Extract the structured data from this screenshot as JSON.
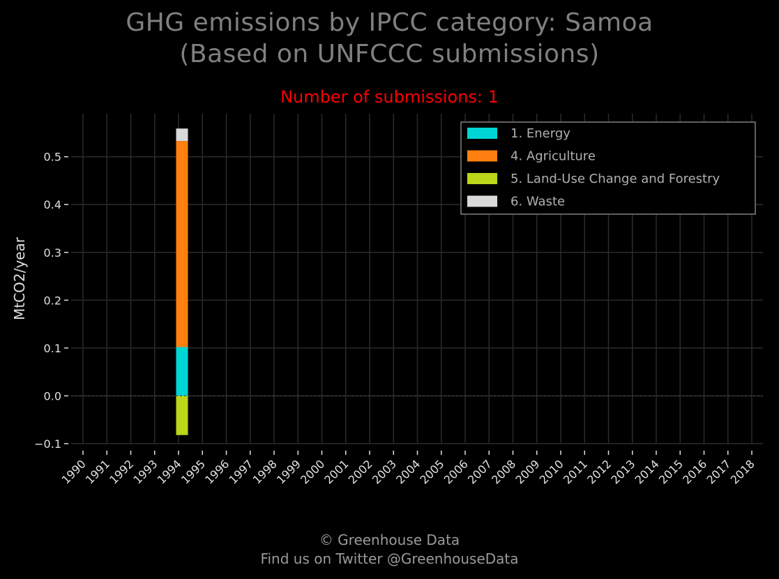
{
  "header": {
    "title_line1": "GHG emissions by IPCC category: Samoa",
    "title_line2": "(Based on UNFCCC submissions)",
    "subtitle": "Number of submissions: 1"
  },
  "footer": {
    "line1": "© Greenhouse Data",
    "line2": "Find us on Twitter @GreenhouseData"
  },
  "chart_data": {
    "type": "bar",
    "stacked": true,
    "ylabel": "MtCO2/year",
    "ylim": [
      -0.1,
      0.59
    ],
    "yticks": [
      -0.1,
      0.0,
      0.1,
      0.2,
      0.3,
      0.4,
      0.5
    ],
    "ytick_labels": [
      "−0.1",
      "0.0",
      "0.1",
      "0.2",
      "0.3",
      "0.4",
      "0.5"
    ],
    "categories": [
      "1990",
      "1991",
      "1992",
      "1993",
      "1994",
      "1995",
      "1996",
      "1997",
      "1998",
      "1999",
      "2000",
      "2001",
      "2002",
      "2003",
      "2004",
      "2005",
      "2006",
      "2007",
      "2008",
      "2009",
      "2010",
      "2011",
      "2012",
      "2013",
      "2014",
      "2015",
      "2016",
      "2017",
      "2018"
    ],
    "series": [
      {
        "name": "1. Energy",
        "color": "#00d5d5",
        "values": [
          null,
          null,
          null,
          null,
          0.102,
          null,
          null,
          null,
          null,
          null,
          null,
          null,
          null,
          null,
          null,
          null,
          null,
          null,
          null,
          null,
          null,
          null,
          null,
          null,
          null,
          null,
          null,
          null,
          null
        ]
      },
      {
        "name": "4. Agriculture",
        "color": "#ff8010",
        "values": [
          null,
          null,
          null,
          null,
          0.431,
          null,
          null,
          null,
          null,
          null,
          null,
          null,
          null,
          null,
          null,
          null,
          null,
          null,
          null,
          null,
          null,
          null,
          null,
          null,
          null,
          null,
          null,
          null,
          null
        ]
      },
      {
        "name": "5. Land-Use Change and Forestry",
        "color": "#bcd61a",
        "values": [
          null,
          null,
          null,
          null,
          -0.082,
          null,
          null,
          null,
          null,
          null,
          null,
          null,
          null,
          null,
          null,
          null,
          null,
          null,
          null,
          null,
          null,
          null,
          null,
          null,
          null,
          null,
          null,
          null,
          null
        ]
      },
      {
        "name": "6. Waste",
        "color": "#d9d9d9",
        "values": [
          null,
          null,
          null,
          null,
          0.026,
          null,
          null,
          null,
          null,
          null,
          null,
          null,
          null,
          null,
          null,
          null,
          null,
          null,
          null,
          null,
          null,
          null,
          null,
          null,
          null,
          null,
          null,
          null,
          null
        ]
      }
    ],
    "grid": true,
    "legend_position": "top-right",
    "zero_line": "dashed"
  }
}
